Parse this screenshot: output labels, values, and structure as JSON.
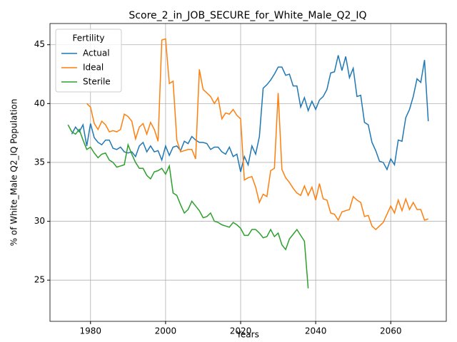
{
  "chart_data": {
    "type": "line",
    "title": "Score_2_in_JOB_SECURE_for_White_Male_Q2_IQ",
    "xlabel": "Years",
    "ylabel": "% of White_Male Q2_IQ Population",
    "legend_title": "Fertility",
    "legend": "upper left",
    "grid": true,
    "xlim": [
      1969.2,
      2074.8
    ],
    "xticks": [
      1980,
      2000,
      2020,
      2040,
      2060
    ],
    "ylim": [
      21.5,
      46.8
    ],
    "yticks": [
      25,
      30,
      35,
      40,
      45
    ],
    "x": [
      1974,
      1975,
      1976,
      1977,
      1978,
      1979,
      1980,
      1981,
      1982,
      1983,
      1984,
      1985,
      1986,
      1987,
      1988,
      1989,
      1990,
      1991,
      1992,
      1993,
      1994,
      1995,
      1996,
      1997,
      1998,
      1999,
      2000,
      2001,
      2002,
      2003,
      2004,
      2005,
      2006,
      2007,
      2008,
      2009,
      2010,
      2011,
      2012,
      2013,
      2014,
      2015,
      2016,
      2017,
      2018,
      2019,
      2020,
      2021,
      2022,
      2023,
      2024,
      2025,
      2026,
      2027,
      2028,
      2029,
      2030,
      2031,
      2032,
      2033,
      2034,
      2035,
      2036,
      2037,
      2038,
      2039,
      2040,
      2041,
      2042,
      2043,
      2044,
      2045,
      2046,
      2047,
      2048,
      2049,
      2050,
      2051,
      2052,
      2053,
      2054,
      2055,
      2056,
      2057,
      2058,
      2059,
      2060,
      2061,
      2062,
      2063,
      2064,
      2065,
      2066,
      2067,
      2068,
      2069,
      2070
    ],
    "series": [
      {
        "name": "Actual",
        "color": "#1f77b4",
        "values": [
          null,
          37.4,
          38.0,
          37.6,
          38.2,
          36.4,
          38.3,
          37.1,
          36.7,
          36.5,
          36.9,
          36.9,
          36.2,
          36.1,
          36.3,
          35.9,
          35.8,
          35.9,
          35.5,
          36.4,
          36.7,
          35.9,
          36.4,
          35.9,
          36.0,
          35.2,
          36.4,
          35.6,
          36.3,
          36.4,
          36.0,
          36.8,
          36.6,
          37.2,
          36.9,
          36.7,
          36.7,
          36.6,
          36.1,
          36.3,
          36.3,
          35.9,
          35.7,
          36.3,
          35.5,
          35.7,
          34.2,
          35.5,
          34.8,
          36.4,
          35.7,
          37.2,
          41.3,
          41.6,
          42.0,
          42.5,
          43.1,
          43.1,
          42.4,
          42.5,
          41.5,
          41.5,
          39.7,
          40.5,
          39.4,
          40.2,
          39.5,
          40.3,
          40.6,
          41.2,
          42.6,
          42.7,
          44.1,
          42.8,
          44.0,
          42.2,
          43.0,
          40.6,
          40.7,
          38.4,
          38.2,
          36.7,
          36.0,
          35.1,
          35.0,
          34.4,
          35.3,
          34.8,
          36.9,
          36.8,
          38.8,
          39.5,
          40.6,
          42.1,
          41.8,
          43.7,
          38.5
        ]
      },
      {
        "name": "Ideal",
        "color": "#ff7f0e",
        "values": [
          null,
          null,
          null,
          null,
          null,
          40.0,
          39.7,
          38.3,
          37.8,
          38.5,
          38.2,
          37.6,
          37.7,
          37.6,
          37.8,
          39.1,
          38.9,
          38.5,
          37.0,
          38.0,
          38.3,
          37.4,
          38.4,
          37.8,
          36.8,
          45.4,
          45.5,
          41.7,
          41.9,
          36.9,
          35.9,
          36.0,
          36.1,
          36.1,
          35.3,
          42.9,
          41.2,
          40.9,
          40.6,
          40.0,
          40.5,
          38.7,
          39.2,
          39.1,
          39.5,
          39.0,
          38.7,
          33.5,
          33.7,
          33.8,
          32.9,
          31.6,
          32.3,
          32.1,
          34.3,
          34.5,
          40.9,
          34.4,
          33.7,
          33.3,
          32.8,
          32.4,
          32.2,
          33.0,
          32.2,
          32.9,
          31.8,
          33.2,
          31.9,
          31.8,
          30.7,
          30.6,
          30.1,
          30.8,
          30.9,
          31.0,
          32.1,
          31.8,
          31.6,
          30.4,
          30.5,
          29.6,
          29.3,
          29.6,
          29.9,
          30.6,
          31.3,
          30.7,
          31.8,
          30.9,
          31.9,
          31.0,
          31.6,
          31.0,
          31.0,
          30.1,
          30.2
        ]
      },
      {
        "name": "Sterile",
        "color": "#2ca02c",
        "values": [
          38.2,
          37.6,
          37.4,
          37.8,
          36.9,
          36.1,
          36.3,
          35.8,
          35.4,
          35.7,
          35.8,
          35.2,
          35.0,
          34.6,
          34.7,
          34.8,
          36.5,
          35.7,
          35.0,
          34.5,
          34.5,
          33.9,
          33.6,
          34.2,
          34.3,
          34.5,
          34.0,
          34.7,
          32.4,
          32.2,
          31.4,
          30.7,
          31.0,
          31.7,
          31.3,
          30.9,
          30.3,
          30.4,
          30.7,
          30.0,
          29.9,
          29.7,
          29.6,
          29.5,
          29.9,
          29.7,
          29.4,
          28.8,
          28.8,
          29.3,
          29.3,
          29.0,
          28.6,
          28.7,
          29.3,
          28.7,
          29.0,
          28.0,
          27.6,
          28.5,
          28.9,
          29.3,
          28.8,
          28.3,
          24.3,
          null,
          null,
          null,
          null,
          null,
          null,
          null,
          null,
          null,
          null,
          null,
          null,
          null,
          null,
          null,
          null,
          null,
          null,
          null,
          null,
          null,
          null,
          null,
          null,
          null,
          null,
          null,
          null,
          null,
          null,
          null,
          null
        ]
      }
    ]
  }
}
